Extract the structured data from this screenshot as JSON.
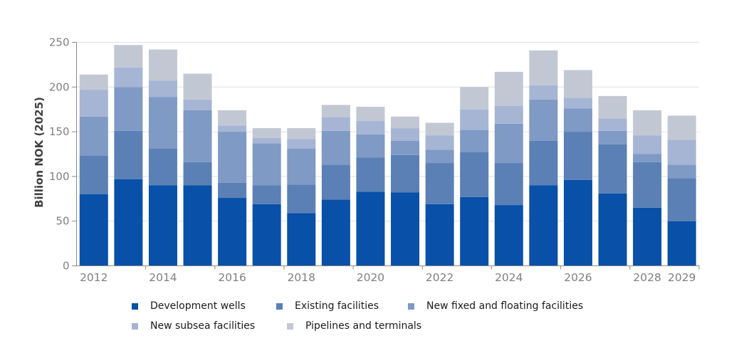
{
  "styles": {
    "background": "#ffffff",
    "grid_color": "#e0e0e0",
    "axis_color": "#8a8a8a",
    "tick_label_color": "#808080",
    "y_title_color": "#404040",
    "legend_text_color": "#1a1a1a"
  },
  "chart_data": {
    "type": "bar",
    "stacked": true,
    "title": "",
    "xlabel": "",
    "ylabel": "Billion NOK (2025)",
    "ylim": [
      0,
      250
    ],
    "yticks": [
      0,
      50,
      100,
      150,
      200,
      250
    ],
    "grid": true,
    "legend_position": "bottom",
    "categories": [
      "2012",
      "2013",
      "2014",
      "2015",
      "2016",
      "2017",
      "2018",
      "2019",
      "2020",
      "2021",
      "2022",
      "2023",
      "2024",
      "2025",
      "2026",
      "2027",
      "2028",
      "2029"
    ],
    "x_ticks": [
      {
        "label": "2012",
        "slot": 0
      },
      {
        "label": "2014",
        "slot": 2
      },
      {
        "label": "2016",
        "slot": 4
      },
      {
        "label": "2018",
        "slot": 6
      },
      {
        "label": "2020",
        "slot": 8
      },
      {
        "label": "2022",
        "slot": 10
      },
      {
        "label": "2024",
        "slot": 12
      },
      {
        "label": "2026",
        "slot": 14
      },
      {
        "label": "2028",
        "slot": 16
      },
      {
        "label": "2029",
        "slot": 17
      }
    ],
    "series": [
      {
        "name": "Development wells",
        "color": "#0850a8",
        "values": [
          80,
          97,
          90,
          90,
          76,
          69,
          59,
          74,
          83,
          82,
          69,
          77,
          68,
          90,
          96,
          81,
          65,
          50
        ]
      },
      {
        "name": "Existing facilities",
        "color": "#5a80b5",
        "values": [
          43,
          54,
          41,
          26,
          17,
          21,
          32,
          39,
          38,
          42,
          46,
          50,
          47,
          50,
          54,
          55,
          51,
          48
        ]
      },
      {
        "name": "New fixed and floating facilities",
        "color": "#7e9ac5",
        "values": [
          44,
          49,
          58,
          58,
          57,
          47,
          40,
          38,
          26,
          16,
          15,
          25,
          44,
          46,
          26,
          15,
          9,
          15
        ]
      },
      {
        "name": "New subsea facilities",
        "color": "#a6b5d4",
        "values": [
          30,
          22,
          18,
          12,
          7,
          6,
          11,
          15,
          15,
          14,
          16,
          23,
          20,
          16,
          12,
          14,
          21,
          28
        ]
      },
      {
        "name": "Pipelines and terminals",
        "color": "#c2c8d3",
        "values": [
          17,
          25,
          35,
          29,
          17,
          11,
          12,
          14,
          16,
          13,
          14,
          25,
          38,
          39,
          31,
          25,
          28,
          27
        ]
      }
    ]
  }
}
